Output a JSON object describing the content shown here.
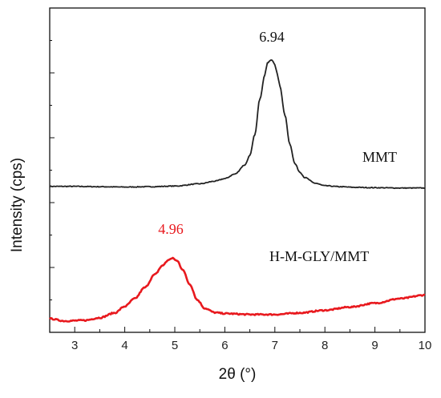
{
  "chart_data": {
    "type": "line",
    "xlabel": "2θ (°)",
    "ylabel": "Intensity (cps)",
    "xlim": [
      2.5,
      10
    ],
    "ylim": [
      0,
      1
    ],
    "x_ticks": [
      "3",
      "4",
      "5",
      "6",
      "7",
      "8",
      "9",
      "10"
    ],
    "grid": false,
    "y_tick_labels": false,
    "series": [
      {
        "name": "MMT",
        "color": "#222222",
        "x": [
          2.5,
          3.0,
          3.5,
          4.0,
          4.5,
          5.0,
          5.5,
          5.8,
          6.0,
          6.2,
          6.4,
          6.5,
          6.6,
          6.7,
          6.8,
          6.85,
          6.9,
          6.94,
          7.0,
          7.05,
          7.1,
          7.2,
          7.3,
          7.4,
          7.5,
          7.6,
          7.8,
          8.0,
          8.3,
          8.6,
          9.0,
          9.5,
          10.0
        ],
        "y": [
          0.45,
          0.45,
          0.449,
          0.448,
          0.449,
          0.451,
          0.458,
          0.466,
          0.474,
          0.488,
          0.516,
          0.545,
          0.61,
          0.72,
          0.795,
          0.83,
          0.838,
          0.84,
          0.825,
          0.795,
          0.76,
          0.67,
          0.58,
          0.52,
          0.494,
          0.477,
          0.46,
          0.452,
          0.449,
          0.447,
          0.446,
          0.445,
          0.445
        ]
      },
      {
        "name": "H-M-GLY/MMT",
        "color": "#e8191e",
        "x": [
          2.5,
          2.8,
          3.2,
          3.5,
          3.8,
          4.0,
          4.2,
          4.4,
          4.6,
          4.75,
          4.85,
          4.9,
          4.96,
          5.05,
          5.15,
          5.3,
          5.45,
          5.6,
          5.8,
          6.0,
          6.5,
          7.0,
          7.5,
          8.0,
          8.5,
          9.0,
          9.5,
          10.0
        ],
        "y": [
          0.042,
          0.035,
          0.037,
          0.045,
          0.06,
          0.08,
          0.104,
          0.138,
          0.178,
          0.205,
          0.22,
          0.226,
          0.228,
          0.22,
          0.195,
          0.148,
          0.1,
          0.074,
          0.061,
          0.058,
          0.055,
          0.055,
          0.06,
          0.068,
          0.078,
          0.09,
          0.104,
          0.115
        ]
      }
    ],
    "annotations": [
      {
        "text": "6.94",
        "color": "#111111"
      },
      {
        "text": "MMT",
        "color": "#111111"
      },
      {
        "text": "4.96",
        "color": "#e8191e"
      },
      {
        "text": "H-M-GLY/MMT",
        "color": "#111111"
      }
    ]
  }
}
